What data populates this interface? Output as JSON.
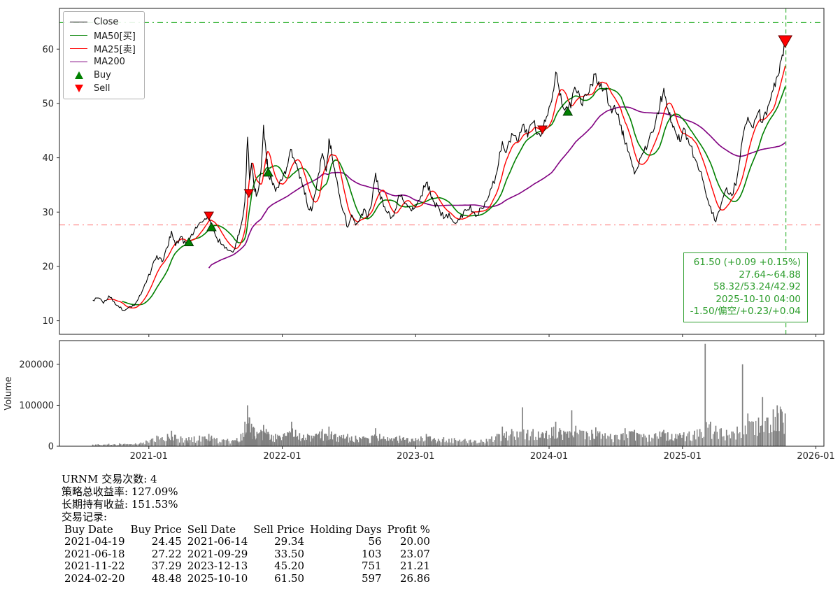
{
  "chart_data": {
    "type": "line",
    "title": "",
    "x_unit": "decimal_year",
    "xlim": [
      2020.33,
      2026.06
    ],
    "price_ylim": [
      7.5,
      67.5
    ],
    "price_yticks": [
      10,
      20,
      30,
      40,
      50,
      60
    ],
    "volume_ylim": [
      0,
      258000
    ],
    "volume_yticks": [
      0,
      100000,
      200000
    ],
    "volume_ytick_labels": [
      "0",
      "100000",
      "200000"
    ],
    "xticks": [
      2021.0,
      2022.0,
      2023.0,
      2024.0,
      2025.0,
      2026.0
    ],
    "xtick_labels": [
      "2021-01",
      "2022-01",
      "2023-01",
      "2024-01",
      "2025-01",
      "2026-01"
    ],
    "ylabel_volume": "Volume",
    "legend": [
      {
        "label": "Close",
        "type": "line",
        "color": "#000000"
      },
      {
        "label": "MA50[买]",
        "type": "line",
        "color": "#008000"
      },
      {
        "label": "MA25[卖]",
        "type": "line",
        "color": "#ff0000"
      },
      {
        "label": "MA200",
        "type": "line",
        "color": "#800080"
      },
      {
        "label": "Buy",
        "type": "triangle-up",
        "color": "#008000"
      },
      {
        "label": "Sell",
        "type": "triangle-down",
        "color": "#ff0000"
      }
    ],
    "series": {
      "close": {
        "name": "Close",
        "color": "#000000",
        "x": [
          2020.58,
          2020.62,
          2020.66,
          2020.7,
          2020.74,
          2020.78,
          2020.82,
          2020.86,
          2020.9,
          2020.94,
          2020.98,
          2021.02,
          2021.06,
          2021.1,
          2021.14,
          2021.17,
          2021.2,
          2021.24,
          2021.28,
          2021.3,
          2021.34,
          2021.38,
          2021.42,
          2021.45,
          2021.47,
          2021.51,
          2021.55,
          2021.59,
          2021.63,
          2021.66,
          2021.69,
          2021.72,
          2021.74,
          2021.755,
          2021.77,
          2021.79,
          2021.81,
          2021.84,
          2021.86,
          2021.88,
          2021.895,
          2021.92,
          2021.95,
          2021.98,
          2022.01,
          2022.04,
          2022.07,
          2022.1,
          2022.13,
          2022.16,
          2022.19,
          2022.22,
          2022.25,
          2022.28,
          2022.3,
          2022.33,
          2022.35,
          2022.37,
          2022.4,
          2022.43,
          2022.46,
          2022.49,
          2022.52,
          2022.55,
          2022.58,
          2022.61,
          2022.64,
          2022.67,
          2022.7,
          2022.73,
          2022.76,
          2022.79,
          2022.82,
          2022.85,
          2022.88,
          2022.91,
          2022.94,
          2022.97,
          2023.0,
          2023.04,
          2023.08,
          2023.11,
          2023.14,
          2023.17,
          2023.21,
          2023.25,
          2023.29,
          2023.33,
          2023.37,
          2023.41,
          2023.45,
          2023.49,
          2023.53,
          2023.57,
          2023.61,
          2023.65,
          2023.68,
          2023.72,
          2023.76,
          2023.8,
          2023.84,
          2023.88,
          2023.92,
          2023.95,
          2023.98,
          2024.02,
          2024.05,
          2024.08,
          2024.11,
          2024.14,
          2024.17,
          2024.2,
          2024.24,
          2024.28,
          2024.32,
          2024.35,
          2024.38,
          2024.42,
          2024.46,
          2024.5,
          2024.54,
          2024.57,
          2024.61,
          2024.64,
          2024.67,
          2024.71,
          2024.75,
          2024.79,
          2024.83,
          2024.86,
          2024.89,
          2024.92,
          2024.95,
          2024.98,
          2025.01,
          2025.05,
          2025.09,
          2025.13,
          2025.17,
          2025.21,
          2025.25,
          2025.29,
          2025.33,
          2025.37,
          2025.41,
          2025.45,
          2025.49,
          2025.53,
          2025.57,
          2025.6,
          2025.64,
          2025.68,
          2025.71,
          2025.74,
          2025.77
        ],
        "y": [
          13.8,
          14.2,
          13.2,
          14.6,
          13.5,
          12.4,
          11.9,
          12.6,
          13.2,
          14.8,
          17.0,
          19.5,
          22.0,
          20.8,
          23.5,
          26.5,
          23.8,
          25.5,
          24.0,
          24.45,
          26.5,
          28.0,
          28.8,
          29.34,
          27.22,
          25.2,
          24.0,
          23.0,
          22.6,
          24.5,
          27.5,
          32.0,
          43.8,
          36.0,
          39.0,
          34.5,
          33.2,
          37.5,
          46.0,
          40.5,
          37.29,
          36.0,
          33.8,
          35.5,
          37.0,
          38.5,
          41.5,
          39.0,
          36.2,
          34.8,
          31.0,
          30.2,
          33.5,
          37.5,
          40.8,
          37.5,
          43.5,
          41.0,
          36.5,
          33.0,
          30.0,
          27.2,
          29.5,
          27.6,
          28.5,
          30.5,
          29.0,
          31.5,
          37.2,
          33.5,
          31.0,
          29.8,
          29.0,
          30.5,
          33.0,
          32.0,
          31.0,
          30.2,
          31.0,
          33.0,
          35.5,
          33.5,
          31.8,
          31.0,
          28.8,
          29.8,
          28.0,
          28.6,
          30.5,
          31.2,
          29.2,
          30.8,
          32.0,
          34.5,
          37.5,
          43.0,
          41.0,
          44.5,
          43.0,
          46.0,
          43.8,
          46.5,
          44.5,
          45.2,
          47.5,
          50.5,
          55.8,
          51.5,
          49.0,
          48.48,
          50.5,
          52.5,
          50.0,
          51.5,
          53.5,
          55.5,
          53.0,
          52.5,
          49.5,
          48.5,
          46.0,
          42.5,
          40.0,
          37.0,
          38.5,
          41.0,
          43.5,
          45.5,
          49.5,
          52.8,
          49.0,
          46.5,
          44.5,
          43.0,
          45.5,
          42.5,
          40.0,
          37.5,
          34.0,
          31.0,
          28.2,
          31.5,
          34.5,
          33.0,
          36.5,
          43.5,
          47.5,
          45.5,
          48.5,
          46.5,
          49.5,
          52.5,
          55.0,
          58.0,
          61.5
        ]
      },
      "ma25": {
        "name": "MA25[卖]",
        "color": "#ff0000",
        "window": 12
      },
      "ma50": {
        "name": "MA50[买]",
        "color": "#008000",
        "window": 23
      },
      "ma200": {
        "name": "MA200",
        "color": "#800080",
        "window": 93
      }
    },
    "volume": {
      "color": "#808080",
      "values": [
        4000,
        5000,
        4000,
        6000,
        5000,
        7000,
        6000,
        5000,
        7000,
        9000,
        14000,
        18000,
        26000,
        22000,
        30000,
        38000,
        28000,
        24000,
        20000,
        22000,
        24000,
        26000,
        24000,
        30000,
        26000,
        20000,
        16000,
        18000,
        15000,
        20000,
        30000,
        60000,
        100000,
        70000,
        55000,
        45000,
        35000,
        40000,
        52000,
        42000,
        35000,
        28000,
        30000,
        26000,
        30000,
        34000,
        60000,
        40000,
        32000,
        28000,
        30000,
        26000,
        30000,
        36000,
        42000,
        30000,
        48000,
        36000,
        30000,
        26000,
        28000,
        30000,
        24000,
        26000,
        22000,
        24000,
        20000,
        26000,
        44000,
        30000,
        24000,
        22000,
        20000,
        22000,
        26000,
        22000,
        20000,
        18000,
        20000,
        24000,
        30000,
        24000,
        20000,
        18000,
        22000,
        18000,
        20000,
        16000,
        18000,
        16000,
        14000,
        16000,
        18000,
        24000,
        30000,
        48000,
        36000,
        42000,
        36000,
        95000,
        40000,
        42000,
        36000,
        34000,
        38000,
        46000,
        60000,
        44000,
        38000,
        36000,
        88000,
        50000,
        38000,
        36000,
        40000,
        46000,
        36000,
        32000,
        30000,
        28000,
        30000,
        44000,
        36000,
        40000,
        30000,
        30000,
        28000,
        30000,
        36000,
        40000,
        34000,
        30000,
        30000,
        32000,
        34000,
        36000,
        38000,
        42000,
        250000,
        60000,
        50000,
        44000,
        40000,
        36000,
        48000,
        200000,
        80000,
        60000,
        70000,
        120000,
        70000,
        90000,
        100000,
        90000,
        80000
      ]
    },
    "markers": {
      "buys": [
        {
          "x": 2021.3,
          "y": 24.45
        },
        {
          "x": 2021.47,
          "y": 27.22
        },
        {
          "x": 2021.895,
          "y": 37.29
        },
        {
          "x": 2024.14,
          "y": 48.48
        }
      ],
      "sells": [
        {
          "x": 2021.45,
          "y": 29.34
        },
        {
          "x": 2021.75,
          "y": 33.5
        },
        {
          "x": 2023.95,
          "y": 45.2
        },
        {
          "x": 2025.77,
          "y": 61.5,
          "large": true
        }
      ]
    },
    "ref_lines": {
      "upper": {
        "y": 64.88,
        "color": "#00a000",
        "style": "dashdot",
        "opacity": 0.9
      },
      "lower": {
        "y": 27.64,
        "color": "#ff0000",
        "style": "dashdot",
        "opacity": 0.5
      },
      "vline": {
        "x": 2025.775,
        "color": "#00a000",
        "style": "dashed",
        "opacity": 0.75
      }
    },
    "annotation": {
      "color": "#2e9e2e",
      "lines": [
        "61.50 (+0.09 +0.15%)",
        "27.64~64.88",
        "58.32/53.24/42.92",
        "2025-10-10 04:00",
        "-1.50/偏空/+0.23/+0.04"
      ]
    }
  },
  "summary": {
    "ticker_line": "URNM 交易次数: 4",
    "strategy_return_line": "策略总收益率: 127.09%",
    "hold_return_line": "长期持有收益: 151.53%",
    "trades_label": "交易记录:",
    "trades": {
      "headers": [
        "Buy Date",
        "Buy Price",
        "Sell Date",
        "Sell Price",
        "Holding Days",
        "Profit %"
      ],
      "rows": [
        {
          "buy_date": "2021-04-19",
          "buy_price": "24.45",
          "sell_date": "2021-06-14",
          "sell_price": "29.34",
          "holding_days": "56",
          "profit_pct": "20.00"
        },
        {
          "buy_date": "2021-06-18",
          "buy_price": "27.22",
          "sell_date": "2021-09-29",
          "sell_price": "33.50",
          "holding_days": "103",
          "profit_pct": "23.07"
        },
        {
          "buy_date": "2021-11-22",
          "buy_price": "37.29",
          "sell_date": "2023-12-13",
          "sell_price": "45.20",
          "holding_days": "751",
          "profit_pct": "21.21"
        },
        {
          "buy_date": "2024-02-20",
          "buy_price": "48.48",
          "sell_date": "2025-10-10",
          "sell_price": "61.50",
          "holding_days": "597",
          "profit_pct": "26.86"
        }
      ]
    }
  }
}
